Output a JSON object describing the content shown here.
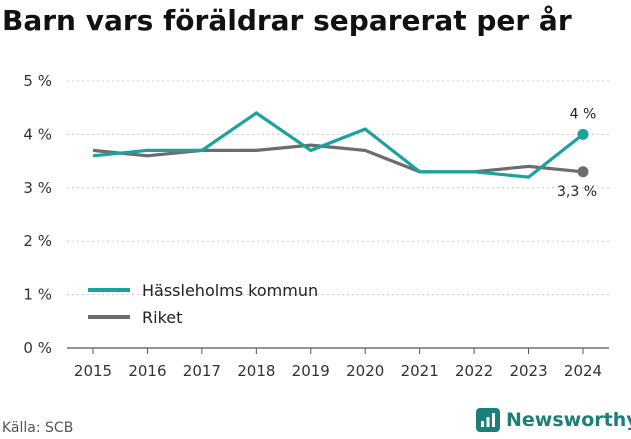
{
  "title": "Barn vars föräldrar separerat per år",
  "source": "Källa: SCB",
  "brand": "Newsworthy",
  "chart_data": {
    "type": "line",
    "title": "Barn vars föräldrar separerat per år",
    "x": [
      "2015",
      "2016",
      "2017",
      "2018",
      "2019",
      "2020",
      "2021",
      "2022",
      "2023",
      "2024"
    ],
    "ylim": [
      0,
      5
    ],
    "yticks": [
      0,
      1,
      2,
      3,
      4,
      5
    ],
    "ytick_labels": [
      "0 %",
      "1 %",
      "2 %",
      "3 %",
      "4 %",
      "5 %"
    ],
    "grid": true,
    "legend_position": "lower-left",
    "series": [
      {
        "name": "Hässleholms kommun",
        "color": "#1aa39a",
        "values": [
          3.6,
          3.7,
          3.7,
          4.4,
          3.7,
          4.1,
          3.3,
          3.3,
          3.2,
          4.0
        ],
        "end_label": "4 %"
      },
      {
        "name": "Riket",
        "color": "#6b6b70",
        "values": [
          3.7,
          3.6,
          3.7,
          3.7,
          3.8,
          3.7,
          3.3,
          3.3,
          3.4,
          3.3
        ],
        "end_label": "3,3 %"
      }
    ]
  }
}
